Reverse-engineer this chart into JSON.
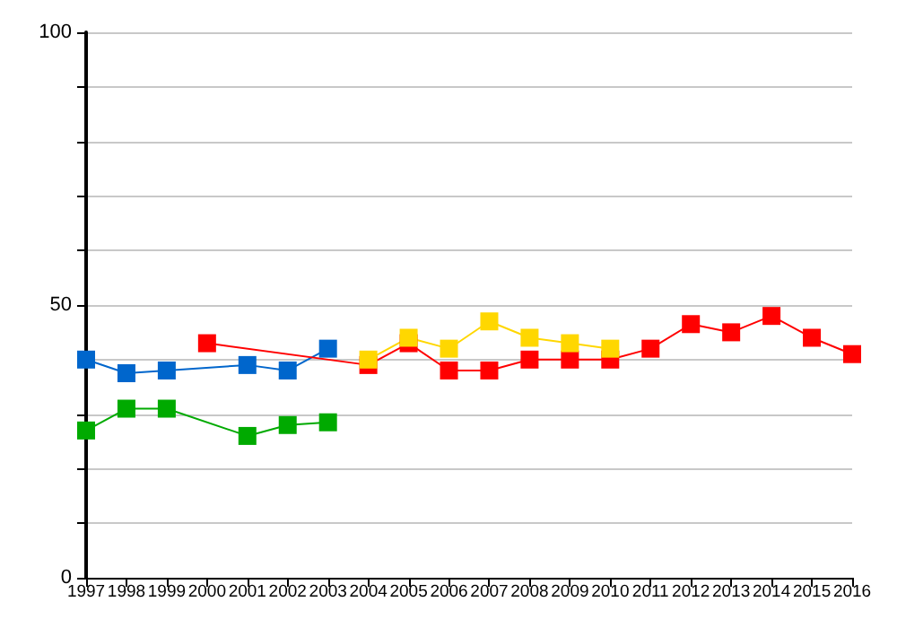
{
  "chart_data": {
    "type": "line",
    "categories": [
      "1997",
      "1998",
      "1999",
      "2000",
      "2001",
      "2002",
      "2003",
      "2004",
      "2005",
      "2006",
      "2007",
      "2008",
      "2009",
      "2010",
      "2011",
      "2012",
      "2013",
      "2014",
      "2015",
      "2016"
    ],
    "series": [
      {
        "color": "#0066cc",
        "values": [
          40,
          37.5,
          38,
          null,
          39,
          38,
          42,
          null,
          null,
          null,
          null,
          null,
          null,
          null,
          null,
          null,
          null,
          null,
          null,
          null
        ]
      },
      {
        "color": "#00aa00",
        "values": [
          27,
          31,
          31,
          null,
          26,
          28,
          28.5,
          null,
          null,
          null,
          null,
          null,
          null,
          null,
          null,
          null,
          null,
          null,
          null,
          null
        ]
      },
      {
        "color": "#ff0000",
        "values": [
          null,
          null,
          null,
          43,
          null,
          null,
          null,
          39,
          43,
          38,
          38,
          40,
          40,
          40,
          42,
          46.5,
          45,
          48,
          44,
          41
        ]
      },
      {
        "color": "#ffd700",
        "values": [
          null,
          null,
          null,
          null,
          null,
          null,
          null,
          40,
          44,
          42,
          47,
          44,
          43,
          42,
          null,
          null,
          null,
          null,
          null,
          null
        ]
      }
    ],
    "ylim": [
      0,
      100
    ],
    "yticks": [
      0,
      {
        "value": 10,
        "label": null
      },
      {
        "value": 20,
        "label": null
      },
      {
        "value": 30,
        "label": null
      },
      {
        "value": 40,
        "label": null
      },
      50,
      {
        "value": 60,
        "label": null
      },
      {
        "value": 70,
        "label": null
      },
      {
        "value": 80,
        "label": null
      },
      {
        "value": 90,
        "label": null
      },
      100
    ],
    "grid": "y",
    "marker": "square",
    "line_style": "solid"
  }
}
